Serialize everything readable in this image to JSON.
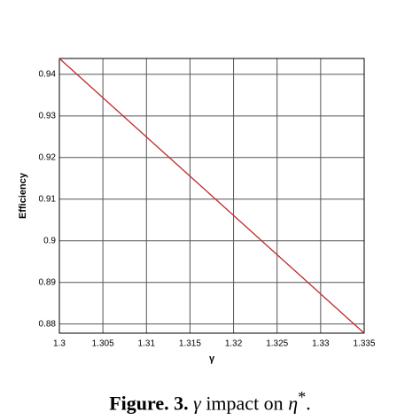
{
  "chart_data": {
    "type": "line",
    "xlabel": "γ",
    "ylabel": "Efficiency",
    "x": [
      1.3,
      1.335
    ],
    "series": [
      {
        "name": "Efficiency",
        "color": "#c0282d",
        "values": [
          0.9438,
          0.8778
        ]
      }
    ],
    "xlim": [
      1.3,
      1.335
    ],
    "xticks": [
      1.3,
      1.305,
      1.31,
      1.315,
      1.32,
      1.325,
      1.33,
      1.335
    ],
    "ylim": [
      0.8778,
      0.9438
    ],
    "yticks": [
      0.88,
      0.89,
      0.9,
      0.91,
      0.92,
      0.93,
      0.94
    ],
    "grid": true
  },
  "caption": {
    "label": "Figure. 3.",
    "symbol": "γ",
    "text": "impact on",
    "symbol2": "η",
    "sup": "*",
    "end": "."
  }
}
